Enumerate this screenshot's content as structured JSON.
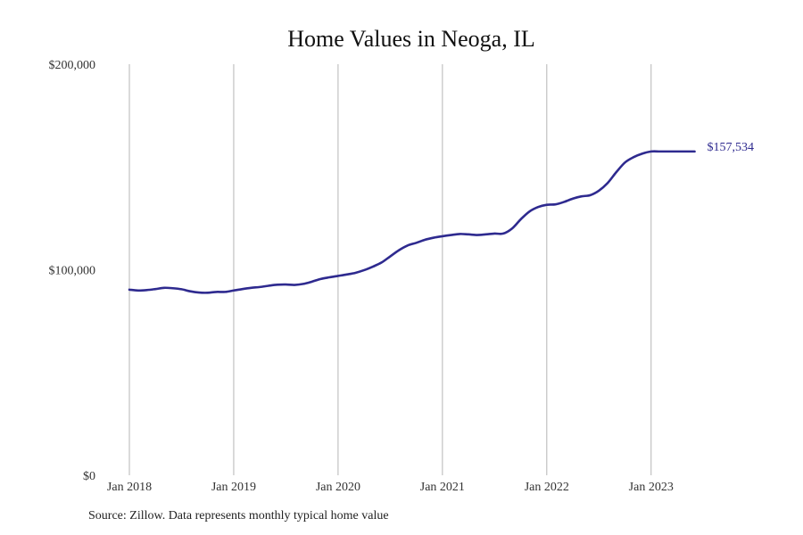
{
  "chart_data": {
    "type": "line",
    "title": "Home Values in Neoga, IL",
    "xlabel": "",
    "ylabel": "",
    "ylim": [
      0,
      200000
    ],
    "yticks": [
      {
        "value": 0,
        "label": "$0"
      },
      {
        "value": 100000,
        "label": "$100,000"
      },
      {
        "value": 200000,
        "label": "$200,000"
      }
    ],
    "xlim": [
      "2018-01",
      "2023-06"
    ],
    "xticks": [
      {
        "value": "2018-01",
        "label": "Jan 2018"
      },
      {
        "value": "2019-01",
        "label": "Jan 2019"
      },
      {
        "value": "2020-01",
        "label": "Jan 2020"
      },
      {
        "value": "2021-01",
        "label": "Jan 2021"
      },
      {
        "value": "2022-01",
        "label": "Jan 2022"
      },
      {
        "value": "2023-01",
        "label": "Jan 2023"
      }
    ],
    "grid": "vertical",
    "line_color": "#2e2a8f",
    "end_label": "$157,534",
    "series": [
      {
        "x": [
          "2018-01",
          "2018-02",
          "2018-03",
          "2018-04",
          "2018-05",
          "2018-06",
          "2018-07",
          "2018-08",
          "2018-09",
          "2018-10",
          "2018-11",
          "2018-12",
          "2019-01",
          "2019-02",
          "2019-03",
          "2019-04",
          "2019-05",
          "2019-06",
          "2019-07",
          "2019-08",
          "2019-09",
          "2019-10",
          "2019-11",
          "2019-12",
          "2020-01",
          "2020-02",
          "2020-03",
          "2020-04",
          "2020-05",
          "2020-06",
          "2020-07",
          "2020-08",
          "2020-09",
          "2020-10",
          "2020-11",
          "2020-12",
          "2021-01",
          "2021-02",
          "2021-03",
          "2021-04",
          "2021-05",
          "2021-06",
          "2021-07",
          "2021-08",
          "2021-09",
          "2021-10",
          "2021-11",
          "2021-12",
          "2022-01",
          "2022-02",
          "2022-03",
          "2022-04",
          "2022-05",
          "2022-06",
          "2022-07",
          "2022-08",
          "2022-09",
          "2022-10",
          "2022-11",
          "2022-12",
          "2023-01",
          "2023-02",
          "2023-03",
          "2023-04",
          "2023-05",
          "2023-06"
        ],
        "values": [
          90300,
          89900,
          90100,
          90600,
          91200,
          91000,
          90500,
          89500,
          88900,
          88800,
          89200,
          89200,
          89900,
          90600,
          91200,
          91600,
          92200,
          92700,
          92800,
          92600,
          93100,
          94200,
          95500,
          96300,
          97000,
          97700,
          98500,
          99800,
          101500,
          103500,
          106500,
          109500,
          111800,
          113100,
          114600,
          115600,
          116300,
          116900,
          117400,
          117200,
          116900,
          117200,
          117600,
          117600,
          120000,
          124500,
          128300,
          130500,
          131600,
          131800,
          133000,
          134600,
          135700,
          136300,
          138500,
          142200,
          147500,
          152200,
          154800,
          156500,
          157534,
          157534,
          157534,
          157534,
          157534,
          157534
        ]
      }
    ]
  },
  "source_note": "Source: Zillow. Data represents monthly typical home value"
}
